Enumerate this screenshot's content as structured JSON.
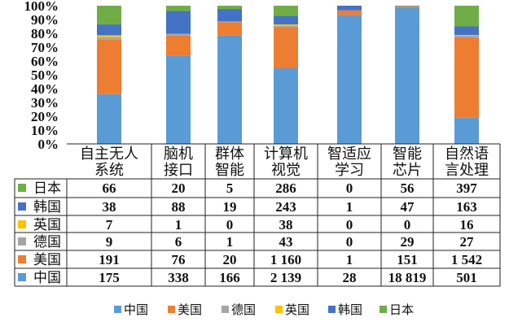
{
  "chart_data": {
    "type": "bar",
    "stacked": "percent",
    "categories": [
      [
        "自主无人",
        "系统"
      ],
      [
        "脑机",
        "接口"
      ],
      [
        "群体",
        "智能"
      ],
      [
        "计算机",
        "视觉"
      ],
      [
        "智适应",
        "学习"
      ],
      [
        "智能",
        "芯片"
      ],
      [
        "自然语",
        "言处理"
      ]
    ],
    "series": [
      {
        "name": "中国",
        "color": "#5b9bd5",
        "values": [
          175,
          338,
          166,
          2139,
          28,
          18819,
          501
        ],
        "labels": [
          "175",
          "338",
          "166",
          "2 139",
          "28",
          "18 819",
          "501"
        ]
      },
      {
        "name": "美国",
        "color": "#ed7d31",
        "values": [
          191,
          76,
          20,
          1160,
          1,
          151,
          1542
        ],
        "labels": [
          "191",
          "76",
          "20",
          "1 160",
          "1",
          "151",
          "1 542"
        ]
      },
      {
        "name": "德国",
        "color": "#a5a5a5",
        "values": [
          9,
          6,
          1,
          43,
          0,
          29,
          27
        ],
        "labels": [
          "9",
          "6",
          "1",
          "43",
          "0",
          "29",
          "27"
        ]
      },
      {
        "name": "英国",
        "color": "#ffc000",
        "values": [
          7,
          1,
          0,
          38,
          0,
          0,
          16
        ],
        "labels": [
          "7",
          "1",
          "0",
          "38",
          "0",
          "0",
          "16"
        ]
      },
      {
        "name": "韩国",
        "color": "#4472c4",
        "values": [
          38,
          88,
          19,
          243,
          1,
          47,
          163
        ],
        "labels": [
          "38",
          "88",
          "19",
          "243",
          "1",
          "47",
          "163"
        ]
      },
      {
        "name": "日本",
        "color": "#70ad47",
        "values": [
          66,
          20,
          5,
          286,
          0,
          56,
          397
        ],
        "labels": [
          "66",
          "20",
          "5",
          "286",
          "0",
          "56",
          "397"
        ]
      }
    ],
    "yticks": [
      "0%",
      "10%",
      "20%",
      "30%",
      "40%",
      "50%",
      "60%",
      "70%",
      "80%",
      "90%",
      "100%"
    ],
    "ylim": [
      0,
      100
    ],
    "table_order": [
      "日本",
      "韩国",
      "英国",
      "德国",
      "美国",
      "中国"
    ],
    "legend_order": [
      "中国",
      "美国",
      "德国",
      "英国",
      "韩国",
      "日本"
    ],
    "legend_position": "bottom",
    "grid": false
  }
}
